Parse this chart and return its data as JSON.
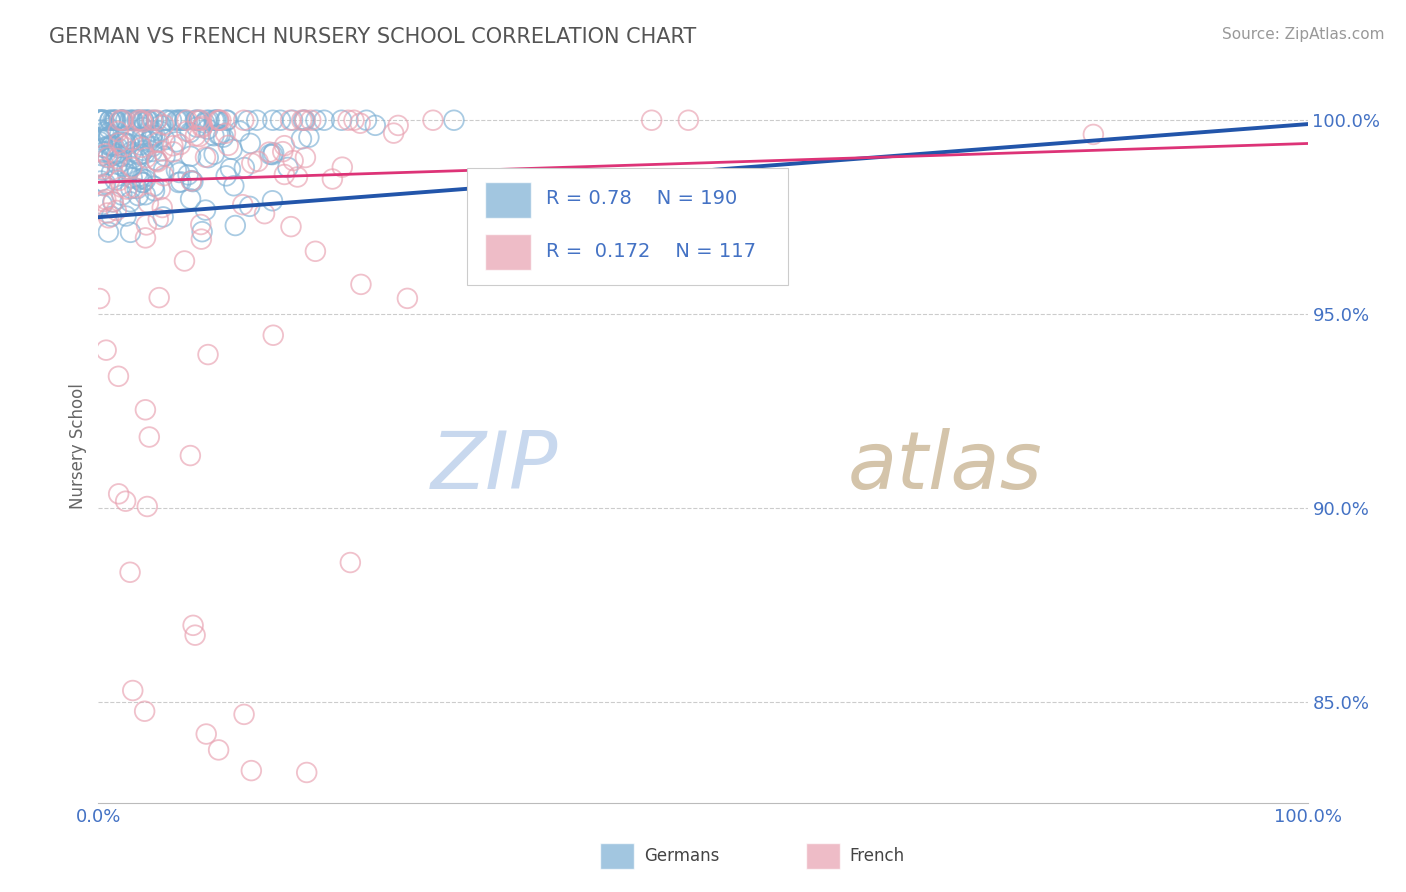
{
  "title": "GERMAN VS FRENCH NURSERY SCHOOL CORRELATION CHART",
  "source": "Source: ZipAtlas.com",
  "ylabel": "Nursery School",
  "yticks": [
    0.85,
    0.9,
    0.95,
    1.0
  ],
  "ytick_labels": [
    "85.0%",
    "90.0%",
    "95.0%",
    "100.0%"
  ],
  "xmin": 0.0,
  "xmax": 1.0,
  "ymin": 0.824,
  "ymax": 1.008,
  "german_R": 0.78,
  "german_N": 190,
  "french_R": 0.172,
  "french_N": 117,
  "german_color": "#7bafd4",
  "french_color": "#e8a0b0",
  "german_line_color": "#2255aa",
  "french_line_color": "#dd3377",
  "watermark_zip_color": "#c8d8ee",
  "watermark_atlas_color": "#d8c8b8",
  "background_color": "#ffffff",
  "grid_color": "#cccccc",
  "title_color": "#555555",
  "legend_text_color": "#4472c4",
  "axis_label_color": "#4472c4",
  "title_fontsize": 15,
  "source_fontsize": 11,
  "tick_fontsize": 13,
  "ylabel_fontsize": 12
}
